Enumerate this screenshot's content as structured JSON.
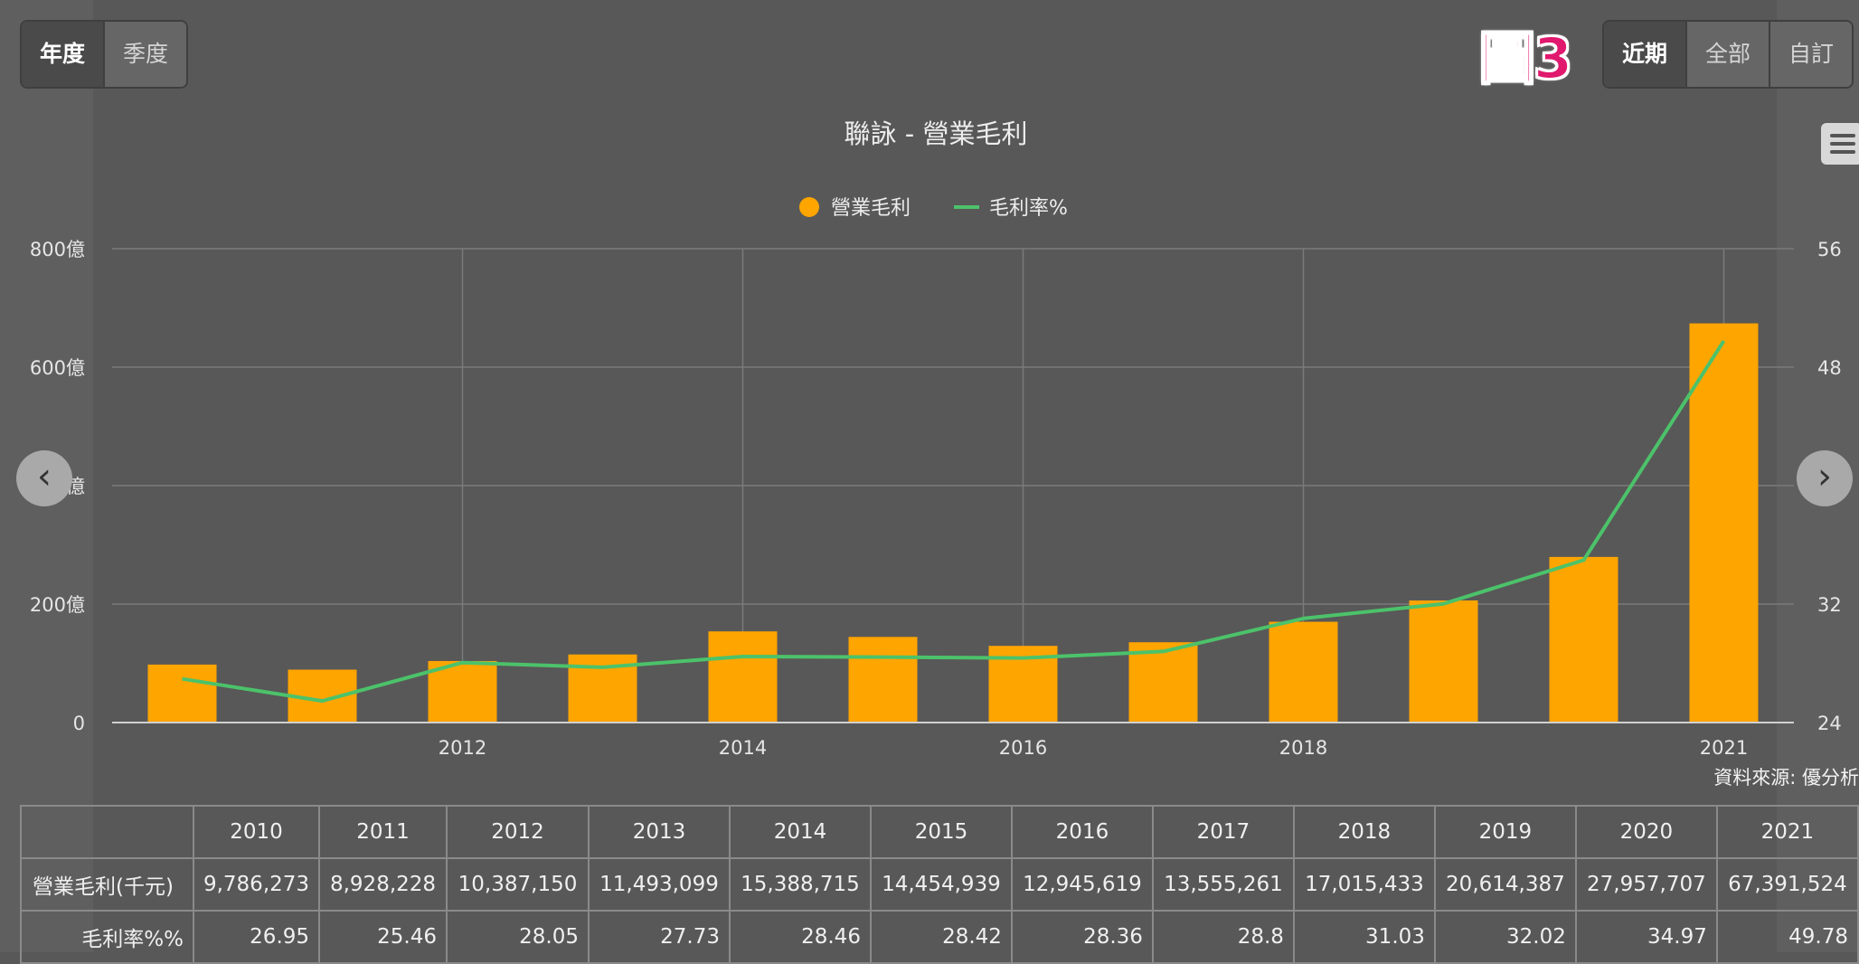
{
  "toolbar": {
    "period_tabs": [
      "年度",
      "季度"
    ],
    "range_tabs": [
      "近期",
      "全部",
      "自訂"
    ],
    "figure_label": "圖3"
  },
  "source_text": "資料來源: 優分析",
  "chart_data": {
    "type": "bar",
    "title": "聯詠 - 營業毛利",
    "categories": [
      "2010",
      "2011",
      "2012",
      "2013",
      "2014",
      "2015",
      "2016",
      "2017",
      "2018",
      "2019",
      "2020",
      "2021"
    ],
    "x_tick_labels": [
      "2012",
      "2014",
      "2016",
      "2018",
      "2021"
    ],
    "y_left": {
      "ticks": [
        "0",
        "200億",
        "400億",
        "600億",
        "800億"
      ],
      "ylim": [
        0,
        800
      ]
    },
    "y_right": {
      "ticks": [
        "24",
        "32",
        "40",
        "48",
        "56"
      ],
      "ylim": [
        24,
        56
      ]
    },
    "series": [
      {
        "name": "營業毛利",
        "type": "bar",
        "axis": "left",
        "color": "#ffa500",
        "values": [
          97.86,
          89.28,
          103.87,
          114.93,
          153.89,
          144.55,
          129.46,
          135.55,
          170.15,
          206.14,
          279.58,
          673.92
        ]
      },
      {
        "name": "毛利率%",
        "type": "line",
        "axis": "right",
        "color": "#4cc26a",
        "values": [
          26.95,
          25.46,
          28.05,
          27.73,
          28.46,
          28.42,
          28.36,
          28.8,
          31.03,
          32.02,
          34.97,
          49.78
        ]
      }
    ],
    "legend_position": "top-center",
    "grid": true
  },
  "table": {
    "header_years": [
      "2010",
      "2011",
      "2012",
      "2013",
      "2014",
      "2015",
      "2016",
      "2017",
      "2018",
      "2019",
      "2020",
      "2021"
    ],
    "rows": [
      {
        "label": "營業毛利(千元)",
        "values": [
          "9,786,273",
          "8,928,228",
          "10,387,150",
          "11,493,099",
          "15,388,715",
          "14,454,939",
          "12,945,619",
          "13,555,261",
          "17,015,433",
          "20,614,387",
          "27,957,707",
          "67,391,524"
        ]
      },
      {
        "label": "毛利率%%",
        "values": [
          "26.95",
          "25.46",
          "28.05",
          "27.73",
          "28.46",
          "28.42",
          "28.36",
          "28.8",
          "31.03",
          "32.02",
          "34.97",
          "49.78"
        ]
      }
    ]
  }
}
